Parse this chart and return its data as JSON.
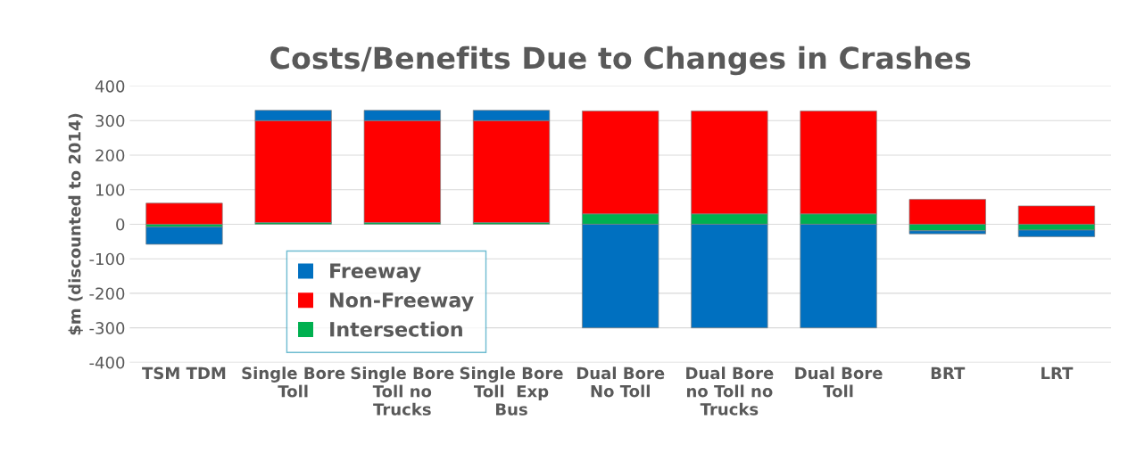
{
  "chart_data": {
    "type": "bar",
    "title": "Costs/Benefits Due to Changes in Crashes",
    "ylabel": "$m (discounted to 2014)",
    "categories": [
      "TSM TDM",
      "Single Bore\nToll",
      "Single Bore\nToll no\nTrucks",
      "Single Bore\nToll  Exp\nBus",
      "Dual Bore\nNo Toll",
      "Dual Bore\nno Toll no\nTrucks",
      "Dual Bore\nToll",
      "BRT",
      "LRT"
    ],
    "stacked": true,
    "series": [
      {
        "name": "Intersection",
        "color": "#00b050",
        "values": [
          -8,
          5,
          5,
          5,
          30,
          30,
          30,
          -19,
          -17
        ]
      },
      {
        "name": "Non-Freeway",
        "color": "#ff0000",
        "values": [
          61,
          295,
          295,
          295,
          298,
          298,
          298,
          72,
          53
        ]
      },
      {
        "name": "Freeway",
        "color": "#0070c0",
        "values": [
          -50,
          30,
          30,
          30,
          -300,
          -300,
          -300,
          -9,
          -19
        ]
      }
    ],
    "ylim": [
      -400,
      400
    ],
    "yticks": [
      -400,
      -300,
      -200,
      -100,
      0,
      100,
      200,
      300,
      400
    ],
    "grid": "y",
    "legend": "bottom left"
  }
}
